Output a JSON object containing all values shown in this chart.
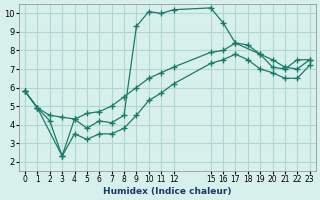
{
  "xlabel": "Humidex (Indice chaleur)",
  "bg_color": "#d8f0ec",
  "grid_color": "#b0d8d0",
  "line_color": "#1a7a6a",
  "ylim": [
    1.5,
    10.5
  ],
  "xlim": [
    -0.5,
    23.5
  ],
  "yticks": [
    2,
    3,
    4,
    5,
    6,
    7,
    8,
    9,
    10
  ],
  "xticks": [
    0,
    1,
    2,
    3,
    4,
    5,
    6,
    7,
    8,
    9,
    10,
    11,
    12,
    15,
    16,
    17,
    18,
    19,
    20,
    21,
    22,
    23
  ],
  "xtick_labels": [
    "0",
    "1",
    "2",
    "3",
    "4",
    "5",
    "6",
    "7",
    "8",
    "9",
    "10",
    "11",
    "12",
    "15",
    "16",
    "17",
    "18",
    "19",
    "20",
    "21",
    "22",
    "23"
  ],
  "series": [
    {
      "x": [
        0,
        1,
        3,
        4,
        5,
        6,
        7,
        8,
        9,
        10,
        11,
        12,
        15,
        16,
        17,
        19,
        20,
        21,
        22,
        23
      ],
      "y": [
        5.8,
        4.9,
        2.3,
        4.3,
        3.8,
        4.2,
        4.1,
        4.5,
        9.3,
        10.1,
        10.0,
        10.2,
        10.3,
        9.5,
        8.4,
        7.8,
        7.1,
        7.0,
        7.5,
        7.5
      ]
    },
    {
      "x": [
        0,
        1,
        2,
        3,
        4,
        5,
        6,
        7,
        8,
        9,
        10,
        11,
        12,
        15,
        16,
        17,
        18,
        19,
        20,
        21,
        22,
        23
      ],
      "y": [
        5.8,
        4.9,
        4.5,
        4.4,
        4.3,
        4.6,
        4.7,
        5.0,
        5.5,
        6.0,
        6.5,
        6.8,
        7.1,
        7.9,
        8.0,
        8.4,
        8.3,
        7.8,
        7.5,
        7.1,
        7.0,
        7.5
      ]
    },
    {
      "x": [
        0,
        1,
        2,
        3,
        4,
        5,
        6,
        7,
        8,
        9,
        10,
        11,
        12,
        15,
        16,
        17,
        18,
        19,
        20,
        21,
        22,
        23
      ],
      "y": [
        5.8,
        4.9,
        4.2,
        2.3,
        3.5,
        3.2,
        3.5,
        3.5,
        3.8,
        4.5,
        5.3,
        5.7,
        6.2,
        7.3,
        7.5,
        7.8,
        7.5,
        7.0,
        6.8,
        6.5,
        6.5,
        7.2
      ]
    }
  ]
}
